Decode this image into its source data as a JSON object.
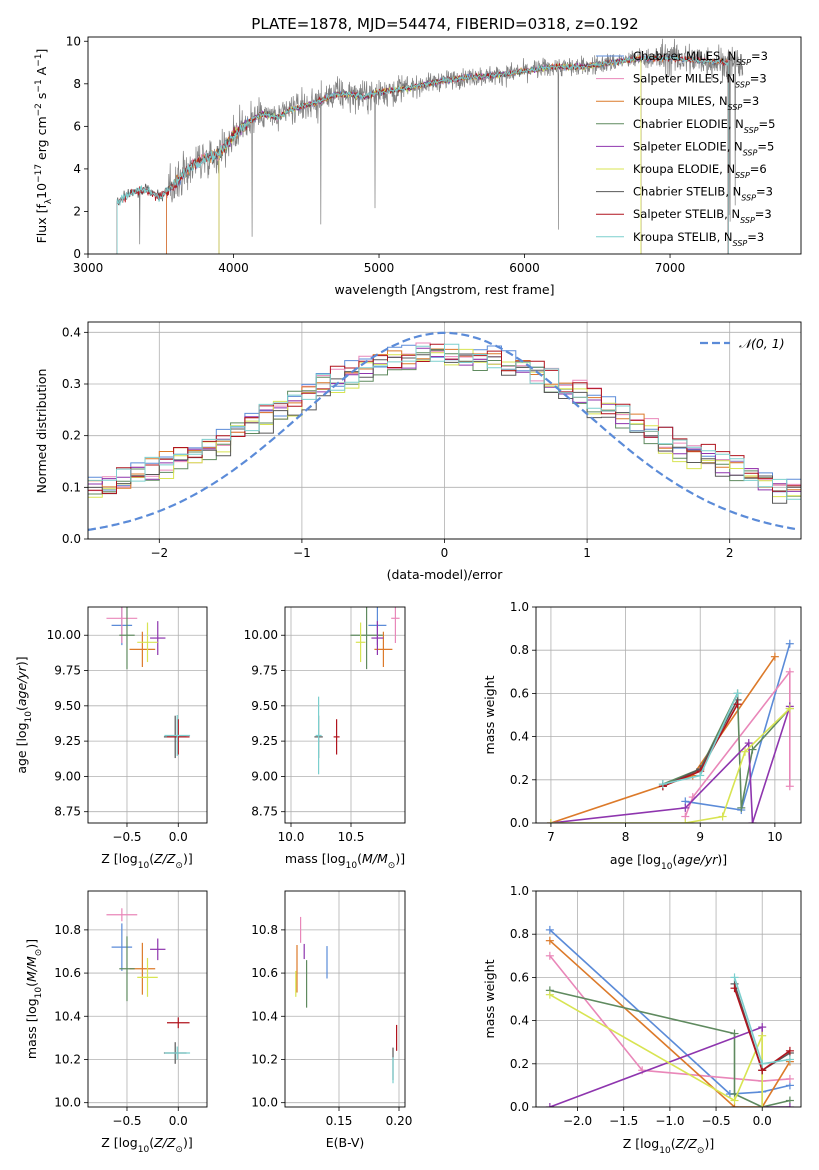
{
  "figure": {
    "title": "PLATE=1878, MJD=54474, FIBERID=0318, z=0.192"
  },
  "colors": {
    "chabrier_miles": "#5b8bd8",
    "salpeter_miles": "#e987b9",
    "kroupa_miles": "#dc7a2a",
    "chabrier_elodie": "#5f8a5f",
    "salpeter_elodie": "#8e35ae",
    "kroupa_elodie": "#d8e452",
    "chabrier_stelib": "#585858",
    "salpeter_stelib": "#b0141e",
    "kroupa_stelib": "#7ccfce",
    "normal_curve": "#5b8bd8",
    "grid": "#b0b0b0"
  },
  "legend_labels": {
    "chabrier_miles": [
      "Chabrier MILES, N",
      "SSP",
      "=3"
    ],
    "salpeter_miles": [
      "Salpeter MILES, N",
      "SSP",
      "=3"
    ],
    "kroupa_miles": [
      "Kroupa MILES, N",
      "SSP",
      "=3"
    ],
    "chabrier_elodie": [
      "Chabrier ELODIE, N",
      "SSP",
      "=5"
    ],
    "salpeter_elodie": [
      "Salpeter ELODIE, N",
      "SSP",
      "=5"
    ],
    "kroupa_elodie": [
      "Kroupa ELODIE, N",
      "SSP",
      "=6"
    ],
    "chabrier_stelib": [
      "Chabrier STELIB, N",
      "SSP",
      "=3"
    ],
    "salpeter_stelib": [
      "Salpeter STELIB, N",
      "SSP",
      "=3"
    ],
    "kroupa_stelib": [
      "Kroupa STELIB, N",
      "SSP",
      "=3"
    ]
  },
  "chart_data": [
    {
      "id": "spectrum",
      "type": "line",
      "xlabel": "wavelength [Angstrom, rest frame]",
      "ylabel": "Flux [f_λ10⁻¹⁷ erg cm⁻² s⁻¹ A⁻¹]",
      "xlim": [
        3000,
        7900
      ],
      "ylim": [
        0,
        10.2
      ],
      "xticks": [
        3000,
        4000,
        5000,
        6000,
        7000
      ],
      "yticks": [
        0,
        2,
        4,
        6,
        8,
        10
      ],
      "legend_position": "upper-right",
      "series_order": [
        "chabrier_miles",
        "salpeter_miles",
        "kroupa_miles",
        "chabrier_elodie",
        "salpeter_elodie",
        "kroupa_elodie",
        "chabrier_stelib",
        "salpeter_stelib",
        "kroupa_stelib"
      ],
      "continuum": [
        [
          3200,
          2.4
        ],
        [
          3300,
          2.9
        ],
        [
          3400,
          3.0
        ],
        [
          3500,
          2.7
        ],
        [
          3600,
          3.3
        ],
        [
          3700,
          4.1
        ],
        [
          3800,
          4.5
        ],
        [
          3900,
          4.7
        ],
        [
          4000,
          5.6
        ],
        [
          4100,
          6.2
        ],
        [
          4200,
          6.6
        ],
        [
          4300,
          6.4
        ],
        [
          4400,
          6.8
        ],
        [
          4500,
          7.0
        ],
        [
          4600,
          7.2
        ],
        [
          4700,
          7.5
        ],
        [
          4800,
          7.5
        ],
        [
          4900,
          7.4
        ],
        [
          5000,
          7.6
        ],
        [
          5200,
          7.8
        ],
        [
          5400,
          8.1
        ],
        [
          5600,
          8.3
        ],
        [
          5800,
          8.4
        ],
        [
          6000,
          8.6
        ],
        [
          6200,
          8.8
        ],
        [
          6400,
          8.8
        ],
        [
          6600,
          9.0
        ],
        [
          6800,
          9.2
        ],
        [
          7000,
          9.2
        ],
        [
          7200,
          9.1
        ],
        [
          7400,
          9.0
        ],
        [
          7500,
          8.9
        ]
      ],
      "elodie_range": [
        3900,
        6800
      ],
      "miles_range": [
        3540,
        7400
      ]
    },
    {
      "id": "residuals",
      "type": "histogram",
      "xlabel": "(data-model)/error",
      "ylabel": "Normed distribution",
      "xlim": [
        -2.5,
        2.5
      ],
      "ylim": [
        0,
        0.42
      ],
      "xticks": [
        -2,
        -1,
        0,
        1,
        2
      ],
      "yticks": [
        0.0,
        0.1,
        0.2,
        0.3,
        0.4
      ],
      "bin_width": 0.1,
      "legend": "𝒩(0, 1)",
      "legend_position": "upper-right"
    },
    {
      "id": "age_vs_Z",
      "type": "scatter",
      "xlabel": "Z [log10(Z/Z⊙)]",
      "ylabel": "age  [log10(age/yr)]",
      "xlim": [
        -0.88,
        0.28
      ],
      "ylim": [
        8.67,
        10.2
      ],
      "xticks": [
        -0.5,
        0.0
      ],
      "yticks": [
        8.75,
        9.0,
        9.25,
        9.5,
        9.75,
        10.0
      ],
      "points": [
        {
          "s": "chabrier_miles",
          "x": -0.55,
          "y": 10.07,
          "xerr": 0.2,
          "yerr": 0.28
        },
        {
          "s": "salpeter_miles",
          "x": -0.55,
          "y": 10.12,
          "xerr": 0.3,
          "yerr": 0.35
        },
        {
          "s": "kroupa_miles",
          "x": -0.35,
          "y": 9.9,
          "xerr": 0.25,
          "yerr": 0.25
        },
        {
          "s": "chabrier_elodie",
          "x": -0.5,
          "y": 10.0,
          "xerr": 0.15,
          "yerr": 0.48
        },
        {
          "s": "salpeter_elodie",
          "x": -0.2,
          "y": 9.98,
          "xerr": 0.15,
          "yerr": 0.24
        },
        {
          "s": "kroupa_elodie",
          "x": -0.3,
          "y": 9.95,
          "xerr": 0.2,
          "yerr": 0.28
        },
        {
          "s": "chabrier_stelib",
          "x": -0.03,
          "y": 9.28,
          "xerr": 0.22,
          "yerr": 0.3
        },
        {
          "s": "salpeter_stelib",
          "x": 0.0,
          "y": 9.28,
          "xerr": 0.22,
          "yerr": 0.25
        },
        {
          "s": "kroupa_stelib",
          "x": -0.01,
          "y": 9.29,
          "xerr": 0.25,
          "yerr": 0.29
        }
      ]
    },
    {
      "id": "age_vs_mass",
      "type": "scatter",
      "xlabel": "mass [log10(M/M⊙)]",
      "ylabel": "",
      "xlim": [
        9.95,
        10.95
      ],
      "ylim": [
        8.67,
        10.2
      ],
      "xticks": [
        10.0,
        10.5
      ],
      "yticks": [
        8.75,
        9.0,
        9.25,
        9.5,
        9.75,
        10.0
      ],
      "points": [
        {
          "s": "chabrier_miles",
          "x": 10.72,
          "y": 10.07,
          "xerr": 0.15,
          "yerr": 0.28
        },
        {
          "s": "salpeter_miles",
          "x": 10.87,
          "y": 10.12,
          "xerr": 0.07,
          "yerr": 0.35
        },
        {
          "s": "kroupa_miles",
          "x": 10.77,
          "y": 9.9,
          "xerr": 0.15,
          "yerr": 0.25
        },
        {
          "s": "chabrier_elodie",
          "x": 10.63,
          "y": 10.0,
          "xerr": 0.27,
          "yerr": 0.48
        },
        {
          "s": "salpeter_elodie",
          "x": 10.72,
          "y": 9.98,
          "xerr": 0.1,
          "yerr": 0.24
        },
        {
          "s": "kroupa_elodie",
          "x": 10.58,
          "y": 9.95,
          "xerr": 0.08,
          "yerr": 0.28
        },
        {
          "s": "chabrier_stelib",
          "x": 10.23,
          "y": 9.28,
          "xerr": 0.07,
          "yerr": 0.3
        },
        {
          "s": "salpeter_stelib",
          "x": 10.38,
          "y": 9.28,
          "xerr": 0.05,
          "yerr": 0.25
        },
        {
          "s": "kroupa_stelib",
          "x": 10.23,
          "y": 9.29,
          "xerr": 0.05,
          "yerr": 0.55
        }
      ]
    },
    {
      "id": "mass_weight_vs_age",
      "type": "line",
      "xlabel": "age  [log10(age/yr)]",
      "ylabel": "mass weight",
      "xlim": [
        6.8,
        10.35
      ],
      "ylim": [
        0,
        1.0
      ],
      "xticks": [
        7,
        8,
        9,
        10
      ],
      "yticks": [
        0.0,
        0.2,
        0.4,
        0.6,
        0.8,
        1.0
      ],
      "series": [
        {
          "s": "chabrier_miles",
          "points": [
            [
              8.8,
              0.1
            ],
            [
              9.55,
              0.06
            ],
            [
              10.2,
              0.83
            ]
          ]
        },
        {
          "s": "salpeter_miles",
          "points": [
            [
              8.8,
              0.03
            ],
            [
              8.9,
              0.12
            ],
            [
              10.2,
              0.7
            ],
            [
              10.2,
              0.17
            ]
          ]
        },
        {
          "s": "kroupa_miles",
          "points": [
            [
              7.0,
              0.0
            ],
            [
              8.9,
              0.22
            ],
            [
              10.0,
              0.77
            ]
          ]
        },
        {
          "s": "chabrier_elodie",
          "points": [
            [
              8.5,
              0.18
            ],
            [
              9.0,
              0.25
            ],
            [
              9.5,
              0.6
            ],
            [
              9.55,
              0.07
            ],
            [
              9.7,
              0.34
            ],
            [
              10.2,
              0.53
            ]
          ]
        },
        {
          "s": "salpeter_elodie",
          "points": [
            [
              7.0,
              0.0
            ],
            [
              8.8,
              0.07
            ],
            [
              9.65,
              0.37
            ],
            [
              9.7,
              0.0
            ],
            [
              10.2,
              0.54
            ]
          ]
        },
        {
          "s": "kroupa_elodie",
          "points": [
            [
              7.0,
              0.0
            ],
            [
              8.8,
              0.0
            ],
            [
              9.3,
              0.03
            ],
            [
              9.6,
              0.33
            ],
            [
              10.2,
              0.53
            ]
          ]
        },
        {
          "s": "chabrier_stelib",
          "points": [
            [
              8.5,
              0.17
            ],
            [
              9.0,
              0.25
            ],
            [
              9.5,
              0.57
            ]
          ]
        },
        {
          "s": "salpeter_stelib",
          "points": [
            [
              8.5,
              0.17
            ],
            [
              9.0,
              0.24
            ],
            [
              9.5,
              0.55
            ]
          ]
        },
        {
          "s": "kroupa_stelib",
          "points": [
            [
              8.5,
              0.18
            ],
            [
              9.0,
              0.22
            ],
            [
              9.5,
              0.6
            ]
          ]
        }
      ]
    },
    {
      "id": "mass_vs_Z",
      "type": "scatter",
      "xlabel": "Z [log10(Z/Z⊙)]",
      "ylabel": "mass [log10(M/M⊙)]",
      "xlim": [
        -0.88,
        0.28
      ],
      "ylim": [
        9.98,
        10.98
      ],
      "xticks": [
        -0.5,
        0.0
      ],
      "yticks": [
        10.0,
        10.2,
        10.4,
        10.6,
        10.8
      ],
      "points": [
        {
          "s": "chabrier_miles",
          "x": -0.55,
          "y": 10.72,
          "xerr": 0.2,
          "yerr": 0.22
        },
        {
          "s": "salpeter_miles",
          "x": -0.55,
          "y": 10.87,
          "xerr": 0.3,
          "yerr": 0.06
        },
        {
          "s": "kroupa_miles",
          "x": -0.35,
          "y": 10.62,
          "xerr": 0.25,
          "yerr": 0.24
        },
        {
          "s": "chabrier_elodie",
          "x": -0.5,
          "y": 10.62,
          "xerr": 0.15,
          "yerr": 0.3
        },
        {
          "s": "salpeter_elodie",
          "x": -0.2,
          "y": 10.71,
          "xerr": 0.15,
          "yerr": 0.1
        },
        {
          "s": "kroupa_elodie",
          "x": -0.3,
          "y": 10.58,
          "xerr": 0.2,
          "yerr": 0.18
        },
        {
          "s": "chabrier_stelib",
          "x": -0.03,
          "y": 10.23,
          "xerr": 0.22,
          "yerr": 0.1
        },
        {
          "s": "salpeter_stelib",
          "x": 0.0,
          "y": 10.37,
          "xerr": 0.22,
          "yerr": 0.05
        },
        {
          "s": "kroupa_stelib",
          "x": -0.01,
          "y": 10.23,
          "xerr": 0.25,
          "yerr": 0.06
        }
      ]
    },
    {
      "id": "mass_vs_ebv",
      "type": "scatter",
      "xlabel": "E(B-V)",
      "ylabel": "",
      "xlim": [
        0.105,
        0.205
      ],
      "ylim": [
        9.98,
        10.98
      ],
      "xticks": [
        0.15,
        0.2
      ],
      "yticks": [
        10.0,
        10.2,
        10.4,
        10.6,
        10.8
      ],
      "points": [
        {
          "s": "chabrier_miles",
          "x": 0.14,
          "y": 10.65,
          "xerr": 0,
          "yerr": 0.15
        },
        {
          "s": "salpeter_miles",
          "x": 0.118,
          "y": 10.8,
          "xerr": 0,
          "yerr": 0.12
        },
        {
          "s": "kroupa_miles",
          "x": 0.115,
          "y": 10.62,
          "xerr": 0,
          "yerr": 0.22
        },
        {
          "s": "chabrier_elodie",
          "x": 0.123,
          "y": 10.55,
          "xerr": 0,
          "yerr": 0.22
        },
        {
          "s": "salpeter_elodie",
          "x": 0.121,
          "y": 10.7,
          "xerr": 0,
          "yerr": 0.07
        },
        {
          "s": "kroupa_elodie",
          "x": 0.114,
          "y": 10.55,
          "xerr": 0,
          "yerr": 0.12
        },
        {
          "s": "chabrier_stelib",
          "x": 0.195,
          "y": 10.18,
          "xerr": 0,
          "yerr": 0.15
        },
        {
          "s": "salpeter_stelib",
          "x": 0.198,
          "y": 10.3,
          "xerr": 0,
          "yerr": 0.12
        },
        {
          "s": "kroupa_stelib",
          "x": 0.195,
          "y": 10.15,
          "xerr": 0,
          "yerr": 0.12
        }
      ]
    },
    {
      "id": "mass_weight_vs_Z",
      "type": "line",
      "xlabel": "Z [log10(Z/Z⊙)]",
      "ylabel": "mass weight",
      "xlim": [
        -2.45,
        0.42
      ],
      "ylim": [
        0,
        1.0
      ],
      "xticks": [
        -2.0,
        -1.5,
        -1.0,
        -0.5,
        0.0
      ],
      "yticks": [
        0.0,
        0.2,
        0.4,
        0.6,
        0.8,
        1.0
      ],
      "series": [
        {
          "s": "chabrier_miles",
          "points": [
            [
              -2.3,
              0.82
            ],
            [
              -0.35,
              0.06
            ],
            [
              0.0,
              0.07
            ],
            [
              0.3,
              0.1
            ]
          ]
        },
        {
          "s": "salpeter_miles",
          "points": [
            [
              -2.3,
              0.7
            ],
            [
              -1.3,
              0.17
            ],
            [
              0.0,
              0.12
            ],
            [
              0.3,
              0.13
            ]
          ]
        },
        {
          "s": "kroupa_miles",
          "points": [
            [
              -2.3,
              0.77
            ],
            [
              -0.3,
              0.0
            ],
            [
              0.0,
              0.0
            ],
            [
              0.3,
              0.21
            ]
          ]
        },
        {
          "s": "chabrier_elodie",
          "points": [
            [
              -2.3,
              0.54
            ],
            [
              -0.3,
              0.34
            ],
            [
              -0.3,
              0.06
            ],
            [
              0.0,
              0.0
            ],
            [
              0.3,
              0.03
            ]
          ]
        },
        {
          "s": "salpeter_elodie",
          "points": [
            [
              -2.3,
              0.0
            ],
            [
              0.0,
              0.37
            ],
            [
              0.0,
              0.0
            ],
            [
              0.3,
              0.0
            ]
          ]
        },
        {
          "s": "kroupa_elodie",
          "points": [
            [
              -2.3,
              0.52
            ],
            [
              -0.3,
              0.03
            ],
            [
              0.0,
              0.33
            ],
            [
              0.0,
              0.0
            ]
          ]
        },
        {
          "s": "chabrier_stelib",
          "points": [
            [
              -0.3,
              0.57
            ],
            [
              0.0,
              0.17
            ],
            [
              0.3,
              0.25
            ]
          ]
        },
        {
          "s": "salpeter_stelib",
          "points": [
            [
              -0.3,
              0.55
            ],
            [
              0.0,
              0.17
            ],
            [
              0.3,
              0.26
            ]
          ]
        },
        {
          "s": "kroupa_stelib",
          "points": [
            [
              -0.3,
              0.6
            ],
            [
              0.0,
              0.2
            ],
            [
              0.3,
              0.22
            ]
          ]
        }
      ]
    }
  ]
}
